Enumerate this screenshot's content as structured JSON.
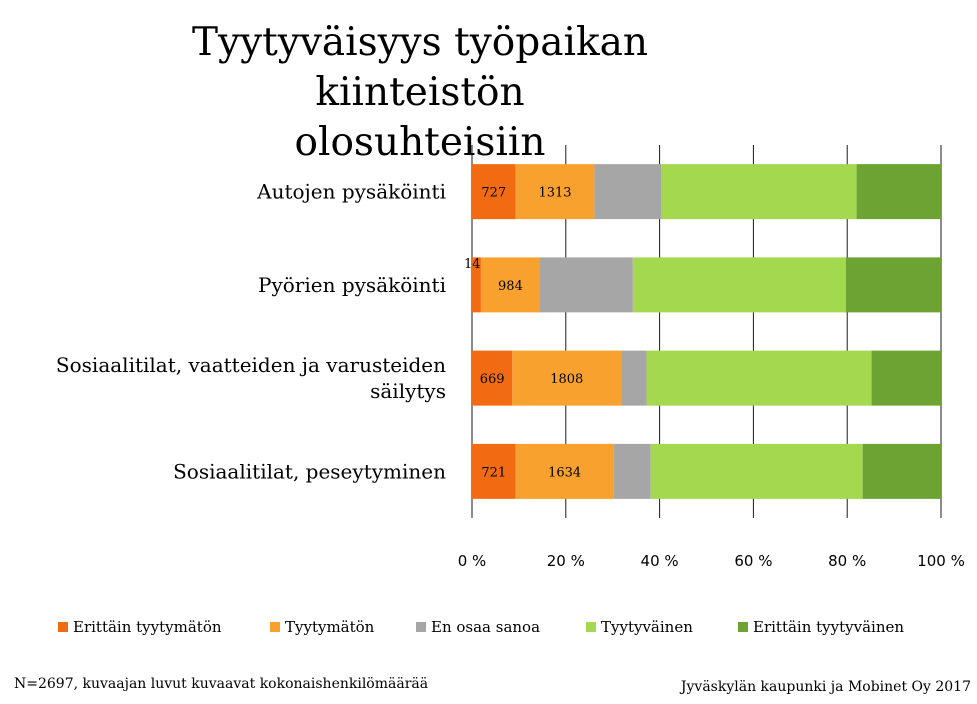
{
  "chart_data": {
    "type": "bar",
    "orientation": "horizontal",
    "stacked": true,
    "percent_stacked": true,
    "title": "Tyytyväisyys työpaikan kiinteistön olosuhteisiin",
    "title_lines": [
      "Tyytyväisyys työpaikan kiinteistön",
      "olosuhteisiin"
    ],
    "categories": [
      "Autojen pysäköinti",
      "Pyörien pysäköinti",
      "Sosiaalitilat, vaatteiden ja varusteiden säilytys",
      "Sosiaalitilat, peseytyminen"
    ],
    "category_label_lines": [
      [
        "Autojen pysäköinti"
      ],
      [
        "Pyörien pysäköinti"
      ],
      [
        "Sosiaalitilat, vaatteiden ja varusteiden",
        "säilytys"
      ],
      [
        "Sosiaalitilat, peseytyminen"
      ]
    ],
    "series": [
      {
        "name": "Erittäin tyytymätön",
        "color": "#F26B12",
        "values": [
          9.3,
          1.9,
          8.6,
          9.3
        ],
        "labels": [
          "727",
          "146",
          "669",
          "721"
        ]
      },
      {
        "name": "Tyytymätön",
        "color": "#F9A12E",
        "values": [
          16.8,
          12.6,
          23.2,
          20.9
        ],
        "labels": [
          "1313",
          "984",
          "1808",
          "1634"
        ]
      },
      {
        "name": "En osaa sanoa",
        "color": "#A6A6A6",
        "values": [
          14.2,
          19.8,
          5.4,
          7.9
        ],
        "labels": [
          "",
          "",
          "",
          ""
        ]
      },
      {
        "name": "Tyytyväinen",
        "color": "#A4D84F",
        "values": [
          41.7,
          45.4,
          48.0,
          45.2
        ],
        "labels": [
          "",
          "",
          "",
          ""
        ]
      },
      {
        "name": "Erittäin tyytyväinen",
        "color": "#6CA333",
        "values": [
          18.0,
          20.3,
          14.8,
          16.7
        ],
        "labels": [
          "",
          "",
          "",
          ""
        ]
      }
    ],
    "xlim": [
      0,
      100
    ],
    "x_ticks": [
      "0 %",
      "20 %",
      "40 %",
      "60 %",
      "80 %",
      "100 %"
    ],
    "xlabel": "",
    "ylabel": "",
    "grid": true,
    "legend_position": "bottom"
  },
  "footnote": "N=2697, kuvaajan luvut kuvaavat kokonaishenkilömäärää",
  "source": "Jyväskylän kaupunki ja Mobinet Oy 2017"
}
